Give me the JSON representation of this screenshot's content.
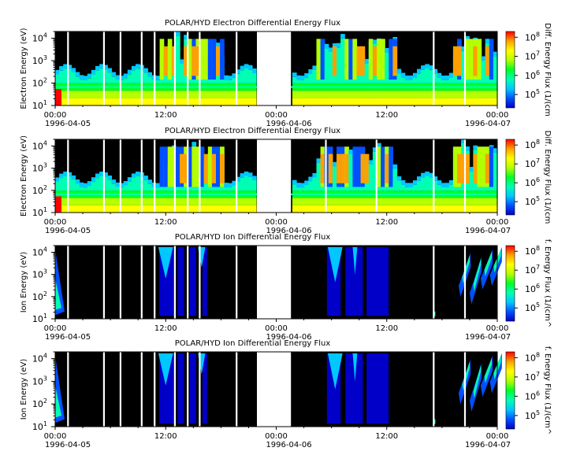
{
  "chart_data": [
    {
      "type": "heatmap",
      "title": "POLAR/HYD  Electron Differential Energy Flux",
      "ylabel": "Electron Energy (eV)",
      "colorbar_label": "Diff. Energy Flux (1/(cm",
      "y_scale": "log",
      "ylim": [
        10,
        20000
      ],
      "y_ticks": [
        {
          "value": 10,
          "base": "10",
          "exp": "1"
        },
        {
          "value": 100,
          "base": "10",
          "exp": "2"
        },
        {
          "value": 1000,
          "base": "10",
          "exp": "3"
        },
        {
          "value": 10000,
          "base": "10",
          "exp": "4"
        }
      ],
      "x_ticks": [
        {
          "time": "00:00",
          "date": "1996-04-05"
        },
        {
          "time": "12:00",
          "date": ""
        },
        {
          "time": "00:00",
          "date": "1996-04-06"
        },
        {
          "time": "12:00",
          "date": ""
        },
        {
          "time": "00:00",
          "date": "1996-04-07"
        }
      ],
      "colorbar_ticks": [
        {
          "value": 100000,
          "base": "10",
          "exp": "5"
        },
        {
          "value": 1000000,
          "base": "10",
          "exp": "6"
        },
        {
          "value": 10000000,
          "base": "10",
          "exp": "7"
        },
        {
          "value": 100000000,
          "base": "10",
          "exp": "8"
        }
      ],
      "clim": [
        20000,
        200000000
      ],
      "data_gaps_hours": [
        [
          22.0,
          25.5
        ]
      ]
    },
    {
      "type": "heatmap",
      "title": "POLAR/HYD  Electron Differential Energy Flux",
      "ylabel": "Electron Energy (eV)",
      "colorbar_label": "Diff. Energy Flux (1/(cm",
      "y_scale": "log",
      "ylim": [
        10,
        20000
      ],
      "y_ticks": [
        {
          "value": 10,
          "base": "10",
          "exp": "1"
        },
        {
          "value": 100,
          "base": "10",
          "exp": "2"
        },
        {
          "value": 1000,
          "base": "10",
          "exp": "3"
        },
        {
          "value": 10000,
          "base": "10",
          "exp": "4"
        }
      ],
      "x_ticks": [
        {
          "time": "00:00",
          "date": "1996-04-05"
        },
        {
          "time": "12:00",
          "date": ""
        },
        {
          "time": "00:00",
          "date": "1996-04-06"
        },
        {
          "time": "12:00",
          "date": ""
        },
        {
          "time": "00:00",
          "date": "1996-04-07"
        }
      ],
      "colorbar_ticks": [
        {
          "value": 100000,
          "base": "10",
          "exp": "5"
        },
        {
          "value": 1000000,
          "base": "10",
          "exp": "6"
        },
        {
          "value": 10000000,
          "base": "10",
          "exp": "7"
        },
        {
          "value": 100000000,
          "base": "10",
          "exp": "8"
        }
      ],
      "clim": [
        20000,
        200000000
      ],
      "data_gaps_hours": [
        [
          22.0,
          25.5
        ]
      ]
    },
    {
      "type": "heatmap",
      "title": "POLAR/HYD  Ion Differential Energy Flux",
      "ylabel": "Ion Energy (eV)",
      "colorbar_label": "f. Energy Flux (1/(cm^",
      "y_scale": "log",
      "ylim": [
        10,
        20000
      ],
      "y_ticks": [
        {
          "value": 10,
          "base": "10",
          "exp": "1"
        },
        {
          "value": 100,
          "base": "10",
          "exp": "2"
        },
        {
          "value": 1000,
          "base": "10",
          "exp": "3"
        },
        {
          "value": 10000,
          "base": "10",
          "exp": "4"
        }
      ],
      "x_ticks": [
        {
          "time": "00:00",
          "date": "1996-04-05"
        },
        {
          "time": "12:00",
          "date": ""
        },
        {
          "time": "00:00",
          "date": "1996-04-06"
        },
        {
          "time": "12:00",
          "date": ""
        },
        {
          "time": "00:00",
          "date": "1996-04-07"
        }
      ],
      "colorbar_ticks": [
        {
          "value": 100000,
          "base": "10",
          "exp": "5"
        },
        {
          "value": 1000000,
          "base": "10",
          "exp": "6"
        },
        {
          "value": 10000000,
          "base": "10",
          "exp": "7"
        },
        {
          "value": 100000000,
          "base": "10",
          "exp": "8"
        }
      ],
      "clim": [
        20000,
        200000000
      ],
      "data_gaps_hours": [
        [
          22.0,
          25.5
        ]
      ]
    },
    {
      "type": "heatmap",
      "title": "POLAR/HYD  Ion Differential Energy Flux",
      "ylabel": "Ion Energy (eV)",
      "colorbar_label": "f. Energy Flux (1/(cm^",
      "y_scale": "log",
      "ylim": [
        10,
        20000
      ],
      "y_ticks": [
        {
          "value": 10,
          "base": "10",
          "exp": "1"
        },
        {
          "value": 100,
          "base": "10",
          "exp": "2"
        },
        {
          "value": 1000,
          "base": "10",
          "exp": "3"
        },
        {
          "value": 10000,
          "base": "10",
          "exp": "4"
        }
      ],
      "x_ticks": [
        {
          "time": "00:00",
          "date": "1996-04-05"
        },
        {
          "time": "12:00",
          "date": ""
        },
        {
          "time": "00:00",
          "date": "1996-04-06"
        },
        {
          "time": "12:00",
          "date": ""
        },
        {
          "time": "00:00",
          "date": "1996-04-07"
        }
      ],
      "colorbar_ticks": [
        {
          "value": 100000,
          "base": "10",
          "exp": "5"
        },
        {
          "value": 1000000,
          "base": "10",
          "exp": "6"
        },
        {
          "value": 10000000,
          "base": "10",
          "exp": "7"
        },
        {
          "value": 100000000,
          "base": "10",
          "exp": "8"
        }
      ],
      "clim": [
        20000,
        200000000
      ],
      "data_gaps_hours": [
        [
          22.0,
          25.5
        ]
      ]
    }
  ],
  "colors": {
    "background": "#000000",
    "colormap": [
      "#0000c8",
      "#0050ff",
      "#00c8ff",
      "#00ffb4",
      "#00ff28",
      "#b4ff00",
      "#ffff00",
      "#ffa000",
      "#ff0000"
    ]
  }
}
